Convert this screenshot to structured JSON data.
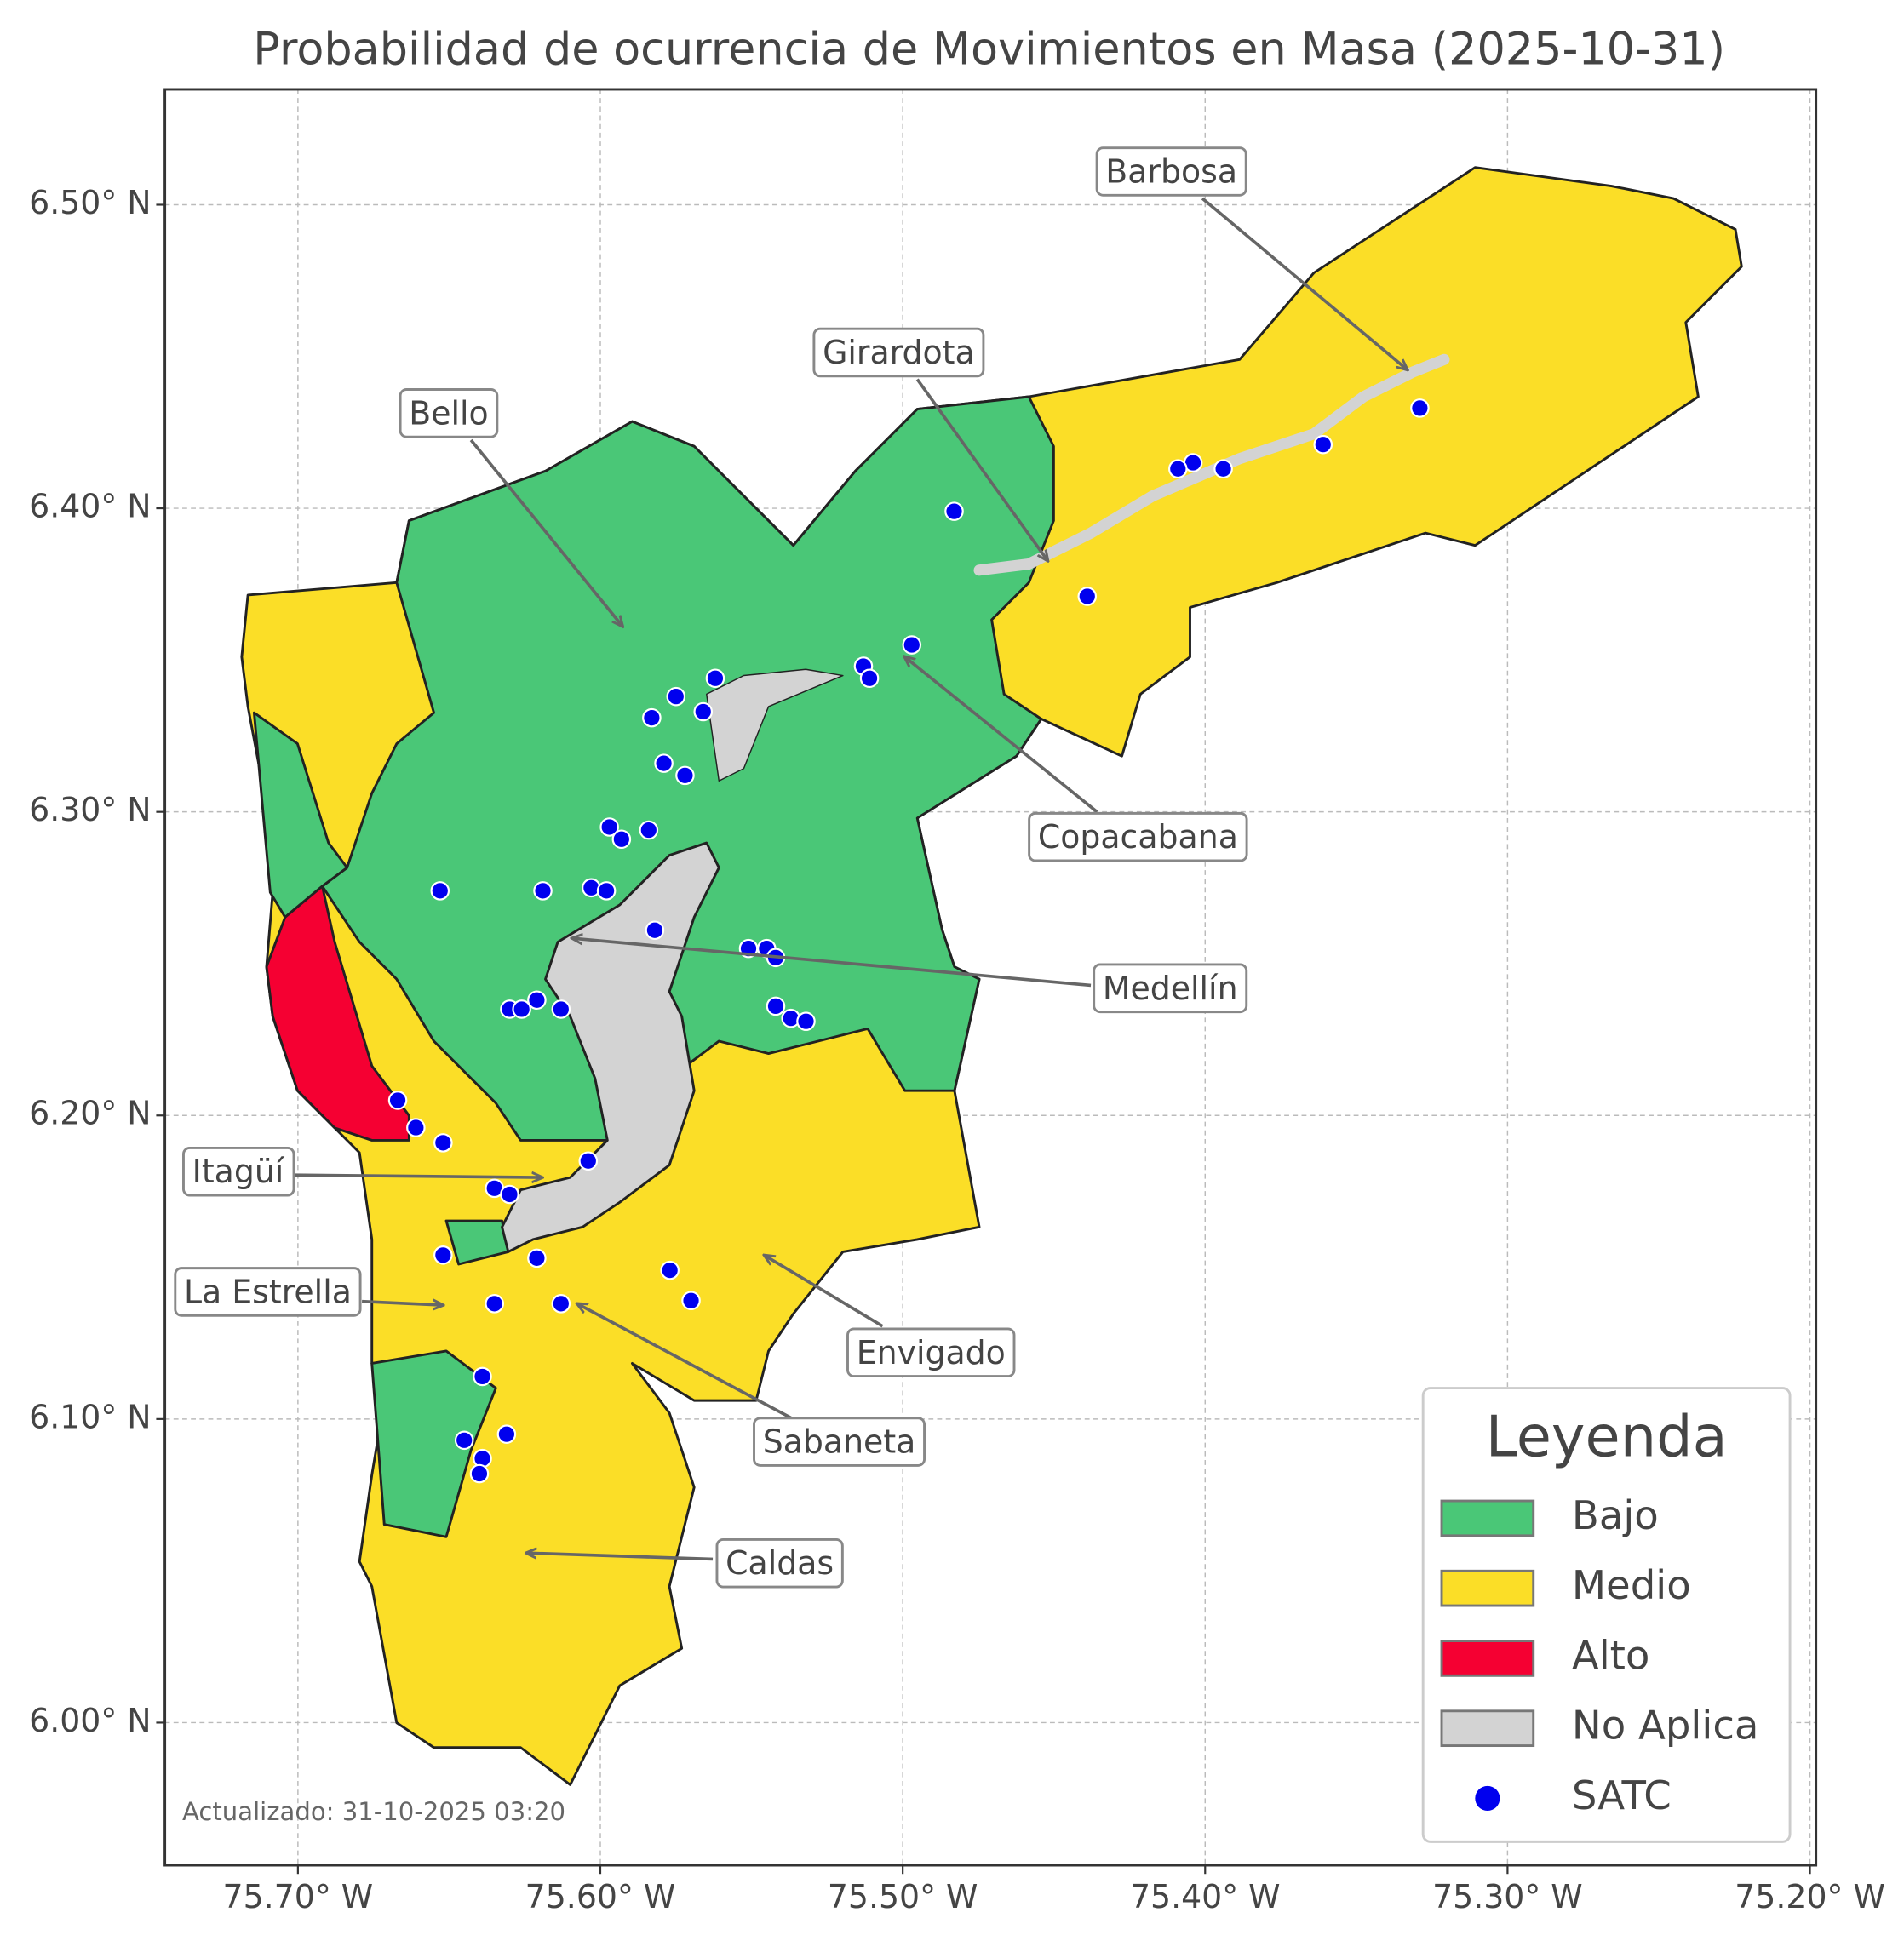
{
  "chart_data": {
    "type": "map",
    "title": "Probabilidad de ocurrencia de Movimientos en Masa (2025-10-31)",
    "xlim": [
      -75.744,
      -75.198
    ],
    "ylim": [
      5.953,
      6.538
    ],
    "xticks": [
      {
        "value": -75.7,
        "label": "75.70° W"
      },
      {
        "value": -75.6,
        "label": "75.60° W"
      },
      {
        "value": -75.5,
        "label": "75.50° W"
      },
      {
        "value": -75.4,
        "label": "75.40° W"
      },
      {
        "value": -75.3,
        "label": "75.30° W"
      },
      {
        "value": -75.2,
        "label": "75.20° W"
      }
    ],
    "yticks": [
      {
        "value": 6.0,
        "label": "6.00° N"
      },
      {
        "value": 6.1,
        "label": "6.10° N"
      },
      {
        "value": 6.2,
        "label": "6.20° N"
      },
      {
        "value": 6.3,
        "label": "6.30° N"
      },
      {
        "value": 6.4,
        "label": "6.40° N"
      },
      {
        "value": 6.5,
        "label": "6.50° N"
      }
    ],
    "grid": true,
    "legend": {
      "title": "Leyenda",
      "position": "lower right",
      "classes": [
        {
          "name": "Bajo",
          "color": "#4ac777"
        },
        {
          "name": "Medio",
          "color": "#fbde27"
        },
        {
          "name": "Alto",
          "color": "#f50032"
        },
        {
          "name": "No Aplica",
          "color": "#d3d3d3"
        }
      ]
    },
    "series": [
      {
        "name": "SATC",
        "color": "#0000ee",
        "lon": [
          -75.329,
          -75.361,
          -75.394,
          -75.404,
          -75.409,
          -75.483,
          -75.439,
          -75.497,
          -75.513,
          -75.511,
          -75.562,
          -75.575,
          -75.566,
          -75.583,
          -75.579,
          -75.572,
          -75.597,
          -75.593,
          -75.584,
          -75.653,
          -75.619,
          -75.603,
          -75.598,
          -75.582,
          -75.551,
          -75.545,
          -75.542,
          -75.542,
          -75.537,
          -75.532,
          -75.63,
          -75.626,
          -75.621,
          -75.613,
          -75.667,
          -75.661,
          -75.652,
          -75.604,
          -75.635,
          -75.63,
          -75.652,
          -75.621,
          -75.577,
          -75.57,
          -75.635,
          -75.613,
          -75.639,
          -75.645,
          -75.631,
          -75.639,
          -75.64
        ],
        "lat": [
          6.433,
          6.421,
          6.413,
          6.415,
          6.413,
          6.399,
          6.371,
          6.355,
          6.348,
          6.344,
          6.344,
          6.338,
          6.333,
          6.331,
          6.316,
          6.312,
          6.295,
          6.291,
          6.294,
          6.274,
          6.274,
          6.275,
          6.274,
          6.261,
          6.255,
          6.255,
          6.252,
          6.236,
          6.232,
          6.231,
          6.235,
          6.235,
          6.238,
          6.235,
          6.205,
          6.196,
          6.191,
          6.185,
          6.176,
          6.174,
          6.154,
          6.153,
          6.149,
          6.139,
          6.138,
          6.138,
          6.114,
          6.093,
          6.095,
          6.087,
          6.082
        ]
      }
    ],
    "annotations": [
      "Barbosa",
      "Girardota",
      "Bello",
      "Copacabana",
      "Medellín",
      "Itagüí",
      "La Estrella",
      "Envigado",
      "Sabaneta",
      "Caldas"
    ],
    "footnote": "Actualizado: 31-10-2025 03:20"
  }
}
